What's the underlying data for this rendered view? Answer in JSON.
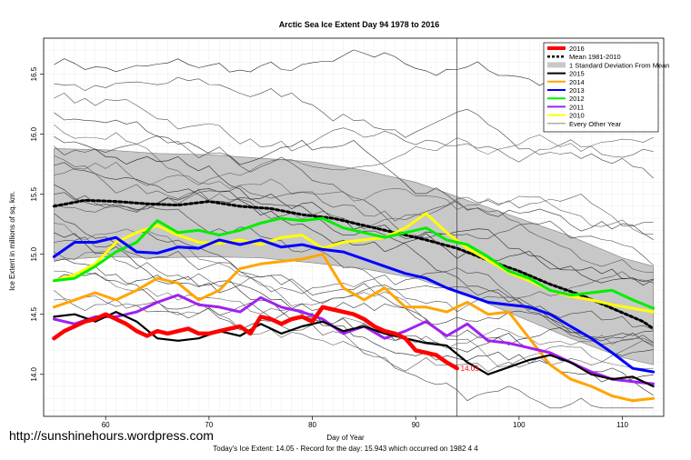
{
  "watermark": "http://sunshinehours.wordpress.com",
  "caption": "Today's Ice Extent: 14.05  - Record for the day: 15.943 which occurred on 1982 4 4",
  "chart_data": {
    "type": "line",
    "title": "Arctic Sea Ice Extent Day 94 1978 to 2016",
    "xlabel": "Day of Year",
    "ylabel": "Ice Extent in millions of sq. km.",
    "xlim": [
      54,
      114
    ],
    "ylim": [
      13.65,
      16.8
    ],
    "x_ticks": [
      60,
      70,
      80,
      90,
      100,
      110
    ],
    "y_ticks": [
      14.0,
      14.5,
      15.0,
      15.5,
      16.0,
      16.5
    ],
    "y_tick_labels": [
      "14.0",
      "14.5",
      "15.0",
      "15.5",
      "16.0",
      "16.5"
    ],
    "grid": true,
    "today_day": 94,
    "today_label": "14.05",
    "legend_position": "top-right",
    "legend": [
      {
        "label": "2016",
        "color": "#ff0000",
        "style": "thick"
      },
      {
        "label": "Mean 1981-2010",
        "color": "#000000",
        "style": "dotted"
      },
      {
        "label": "1 Standard Deviation From Mean",
        "color": "#c8c8c8",
        "style": "band"
      },
      {
        "label": "2015",
        "color": "#000000",
        "style": "solid"
      },
      {
        "label": "2014",
        "color": "#ffa500",
        "style": "solid"
      },
      {
        "label": "2013",
        "color": "#0000ff",
        "style": "solid"
      },
      {
        "label": "2012",
        "color": "#00ee00",
        "style": "solid"
      },
      {
        "label": "2011",
        "color": "#a020f0",
        "style": "solid"
      },
      {
        "label": "2010",
        "color": "#ffff00",
        "style": "solid"
      },
      {
        "label": "Every Other Year",
        "color": "#777777",
        "style": "thin"
      }
    ],
    "band": {
      "x": [
        55,
        60,
        65,
        70,
        75,
        80,
        85,
        90,
        95,
        100,
        105,
        110,
        113
      ],
      "upper": [
        15.88,
        15.87,
        15.84,
        15.83,
        15.8,
        15.77,
        15.7,
        15.6,
        15.45,
        15.3,
        15.15,
        14.97,
        14.9
      ],
      "lower": [
        14.95,
        14.98,
        14.97,
        14.98,
        14.97,
        14.93,
        14.88,
        14.8,
        14.66,
        14.48,
        14.3,
        14.14,
        14.08
      ]
    },
    "series": [
      {
        "name": "Mean 1981-2010",
        "color": "#000000",
        "width": 3,
        "dash": "3,3",
        "x": [
          55,
          58,
          61,
          64,
          67,
          70,
          73,
          76,
          79,
          82,
          85,
          88,
          91,
          94,
          97,
          100,
          103,
          106,
          109,
          112,
          113
        ],
        "values": [
          15.4,
          15.45,
          15.44,
          15.42,
          15.41,
          15.44,
          15.4,
          15.38,
          15.33,
          15.3,
          15.24,
          15.18,
          15.12,
          15.05,
          14.95,
          14.86,
          14.75,
          14.66,
          14.55,
          14.44,
          14.38
        ]
      },
      {
        "name": "2010",
        "color": "#ffff00",
        "width": 3,
        "x": [
          55,
          57,
          59,
          61,
          63,
          65,
          67,
          69,
          71,
          73,
          75,
          77,
          79,
          81,
          83,
          85,
          87,
          89,
          91,
          93,
          95,
          97,
          99,
          101,
          103,
          105,
          107,
          109,
          111,
          113
        ],
        "values": [
          14.78,
          14.83,
          14.92,
          15.1,
          15.18,
          15.24,
          15.16,
          15.1,
          15.09,
          15.12,
          15.08,
          15.14,
          15.16,
          15.05,
          15.1,
          15.12,
          15.14,
          15.22,
          15.34,
          15.18,
          15.05,
          14.95,
          14.85,
          14.78,
          14.7,
          14.65,
          14.62,
          14.58,
          14.55,
          14.52
        ]
      },
      {
        "name": "2012",
        "color": "#00ee00",
        "width": 3,
        "x": [
          55,
          57,
          59,
          61,
          63,
          65,
          67,
          69,
          71,
          73,
          75,
          77,
          79,
          81,
          83,
          85,
          87,
          89,
          91,
          93,
          95,
          97,
          99,
          101,
          103,
          105,
          107,
          109,
          111,
          113
        ],
        "values": [
          14.78,
          14.8,
          14.9,
          15.02,
          15.1,
          15.28,
          15.18,
          15.2,
          15.16,
          15.2,
          15.26,
          15.3,
          15.28,
          15.3,
          15.22,
          15.18,
          15.14,
          15.18,
          15.22,
          15.12,
          15.08,
          14.98,
          14.86,
          14.8,
          14.7,
          14.66,
          14.68,
          14.7,
          14.62,
          14.55
        ]
      },
      {
        "name": "2013",
        "color": "#0000ff",
        "width": 3,
        "x": [
          55,
          57,
          59,
          61,
          63,
          65,
          67,
          69,
          71,
          73,
          75,
          77,
          79,
          81,
          83,
          85,
          87,
          89,
          91,
          93,
          95,
          97,
          99,
          101,
          103,
          105,
          107,
          109,
          111,
          113
        ],
        "values": [
          14.98,
          15.1,
          15.1,
          15.14,
          15.02,
          15.01,
          15.06,
          15.05,
          15.12,
          15.08,
          15.12,
          15.06,
          15.08,
          15.04,
          15.02,
          14.96,
          14.9,
          14.84,
          14.8,
          14.72,
          14.66,
          14.6,
          14.58,
          14.56,
          14.5,
          14.4,
          14.3,
          14.18,
          14.05,
          14.02
        ]
      },
      {
        "name": "2014",
        "color": "#ffa500",
        "width": 3,
        "x": [
          55,
          57,
          59,
          61,
          63,
          65,
          67,
          69,
          71,
          73,
          75,
          77,
          79,
          81,
          83,
          85,
          87,
          89,
          91,
          93,
          95,
          97,
          99,
          101,
          103,
          105,
          107,
          109,
          111,
          113
        ],
        "values": [
          14.56,
          14.62,
          14.68,
          14.62,
          14.7,
          14.8,
          14.76,
          14.62,
          14.7,
          14.88,
          14.92,
          14.94,
          14.96,
          15.0,
          14.72,
          14.62,
          14.72,
          14.56,
          14.56,
          14.52,
          14.6,
          14.5,
          14.52,
          14.3,
          14.08,
          13.96,
          13.9,
          13.82,
          13.78,
          13.8
        ]
      },
      {
        "name": "2011",
        "color": "#a020f0",
        "width": 3,
        "x": [
          55,
          57,
          59,
          61,
          63,
          65,
          67,
          69,
          71,
          73,
          75,
          77,
          79,
          81,
          83,
          85,
          87,
          89,
          91,
          93,
          95,
          97,
          99,
          101,
          103,
          105,
          107,
          109,
          111,
          113
        ],
        "values": [
          14.46,
          14.42,
          14.48,
          14.48,
          14.52,
          14.6,
          14.66,
          14.58,
          14.56,
          14.52,
          14.64,
          14.56,
          14.52,
          14.46,
          14.34,
          14.4,
          14.3,
          14.36,
          14.44,
          14.32,
          14.42,
          14.28,
          14.26,
          14.22,
          14.18,
          14.1,
          14.02,
          13.96,
          13.94,
          13.92
        ]
      },
      {
        "name": "2015",
        "color": "#000000",
        "width": 2.2,
        "x": [
          55,
          57,
          59,
          61,
          63,
          65,
          67,
          69,
          71,
          73,
          75,
          77,
          79,
          81,
          83,
          85,
          87,
          89,
          91,
          93,
          95,
          97,
          99,
          101,
          103,
          105,
          107,
          109,
          111,
          113
        ],
        "values": [
          14.48,
          14.5,
          14.44,
          14.52,
          14.44,
          14.3,
          14.28,
          14.3,
          14.36,
          14.32,
          14.42,
          14.34,
          14.4,
          14.44,
          14.36,
          14.4,
          14.34,
          14.3,
          14.26,
          14.24,
          14.1,
          14.0,
          14.06,
          14.12,
          14.16,
          14.1,
          14.0,
          13.96,
          13.98,
          13.9
        ]
      },
      {
        "name": "2016",
        "color": "#ff0000",
        "width": 4.5,
        "x": [
          55,
          56,
          57,
          58,
          59,
          60,
          61,
          62,
          63,
          64,
          65,
          66,
          67,
          68,
          69,
          70,
          71,
          72,
          73,
          74,
          75,
          76,
          77,
          78,
          79,
          80,
          81,
          82,
          83,
          84,
          85,
          86,
          87,
          88,
          89,
          90,
          91,
          92,
          93,
          94
        ],
        "values": [
          14.3,
          14.36,
          14.4,
          14.44,
          14.46,
          14.5,
          14.46,
          14.42,
          14.36,
          14.32,
          14.36,
          14.34,
          14.36,
          14.38,
          14.34,
          14.34,
          14.36,
          14.38,
          14.4,
          14.34,
          14.48,
          14.46,
          14.42,
          14.46,
          14.48,
          14.44,
          14.56,
          14.54,
          14.52,
          14.5,
          14.46,
          14.4,
          14.36,
          14.34,
          14.3,
          14.2,
          14.18,
          14.16,
          14.1,
          14.05
        ]
      }
    ]
  }
}
